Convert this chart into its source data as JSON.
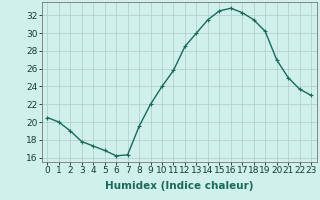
{
  "x": [
    0,
    1,
    2,
    3,
    4,
    5,
    6,
    7,
    8,
    9,
    10,
    11,
    12,
    13,
    14,
    15,
    16,
    17,
    18,
    19,
    20,
    21,
    22,
    23
  ],
  "y": [
    20.5,
    20.0,
    19.0,
    17.8,
    17.3,
    16.8,
    16.2,
    16.3,
    19.5,
    22.0,
    24.0,
    25.8,
    28.5,
    30.0,
    31.5,
    32.5,
    32.8,
    32.3,
    31.5,
    30.2,
    27.0,
    25.0,
    23.7,
    23.0
  ],
  "line_color": "#1a6b5a",
  "marker": "+",
  "marker_size": 3,
  "marker_linewidth": 0.8,
  "bg_color": "#cff0eb",
  "grid_color": "#b0ccc8",
  "xlabel": "Humidex (Indice chaleur)",
  "ylim": [
    15.5,
    33.5
  ],
  "xlim": [
    -0.5,
    23.5
  ],
  "yticks": [
    16,
    18,
    20,
    22,
    24,
    26,
    28,
    30,
    32
  ],
  "xticks": [
    0,
    1,
    2,
    3,
    4,
    5,
    6,
    7,
    8,
    9,
    10,
    11,
    12,
    13,
    14,
    15,
    16,
    17,
    18,
    19,
    20,
    21,
    22,
    23
  ],
  "xlabel_fontsize": 7.5,
  "tick_fontsize": 6.5,
  "line_width": 1.0
}
